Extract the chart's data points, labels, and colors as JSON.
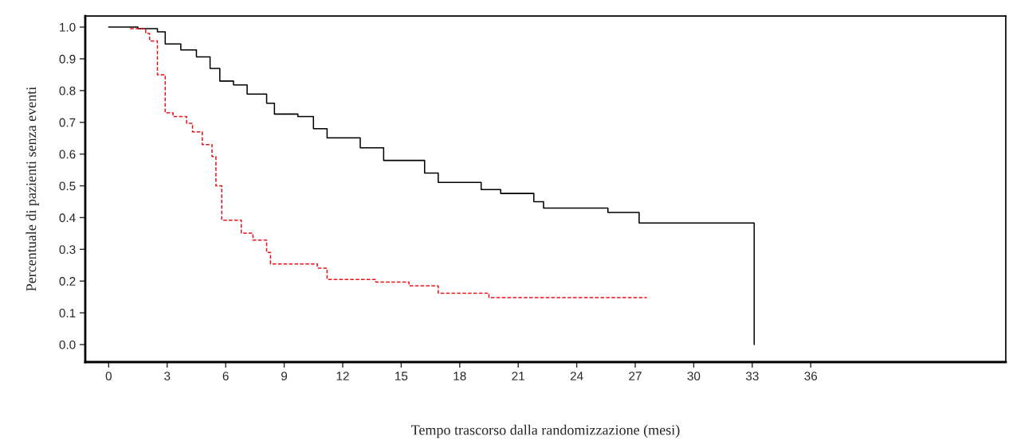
{
  "chart_data": {
    "type": "step",
    "xlabel": "Tempo trascorso dalla randomizzazione (mesi)",
    "ylabel": "Percentuale di pazienti senza eventi",
    "xlim": [
      -1.2,
      46
    ],
    "xticks": [
      0,
      3,
      6,
      9,
      12,
      15,
      18,
      21,
      24,
      27,
      30,
      33,
      36
    ],
    "ylim": [
      -0.055,
      1.035
    ],
    "yticks": [
      {
        "value": 0,
        "label": "0.0"
      },
      0.1,
      0.2,
      0.3,
      0.4,
      0.5,
      0.6,
      0.7,
      0.8,
      0.9,
      {
        "value": 1,
        "label": "1.0"
      }
    ],
    "grid": false,
    "series": [
      {
        "color": "#000000",
        "line_style": "solid",
        "x": [
          0,
          1.5,
          2.5,
          2.9,
          3.7,
          4.5,
          5.2,
          5.7,
          6.4,
          7.1,
          8.1,
          8.5,
          9.7,
          10.5,
          11.2,
          12.9,
          14.1,
          16.2,
          16.9,
          19.1,
          20.1,
          21.8,
          22.3,
          25.6,
          27.2,
          33.1,
          33.1
        ],
        "values": [
          1.0,
          0.995,
          0.985,
          0.947,
          0.928,
          0.906,
          0.87,
          0.83,
          0.818,
          0.789,
          0.76,
          0.726,
          0.718,
          0.68,
          0.651,
          0.62,
          0.58,
          0.54,
          0.511,
          0.488,
          0.476,
          0.45,
          0.43,
          0.416,
          0.383,
          0.383,
          0.0
        ]
      },
      {
        "color": "#e8141c",
        "line_style": "dashed",
        "x": [
          1.1,
          1.9,
          2.1,
          2.5,
          2.9,
          3.3,
          4.0,
          4.3,
          4.8,
          5.3,
          5.5,
          5.8,
          6.8,
          7.4,
          8.1,
          8.3,
          10.7,
          11.2,
          13.7,
          15.4,
          16.9,
          19.5,
          27.6
        ],
        "values": [
          0.995,
          0.98,
          0.956,
          0.85,
          0.73,
          0.718,
          0.697,
          0.67,
          0.63,
          0.592,
          0.5,
          0.392,
          0.351,
          0.329,
          0.29,
          0.254,
          0.241,
          0.205,
          0.197,
          0.185,
          0.162,
          0.148,
          0.148
        ]
      }
    ]
  }
}
